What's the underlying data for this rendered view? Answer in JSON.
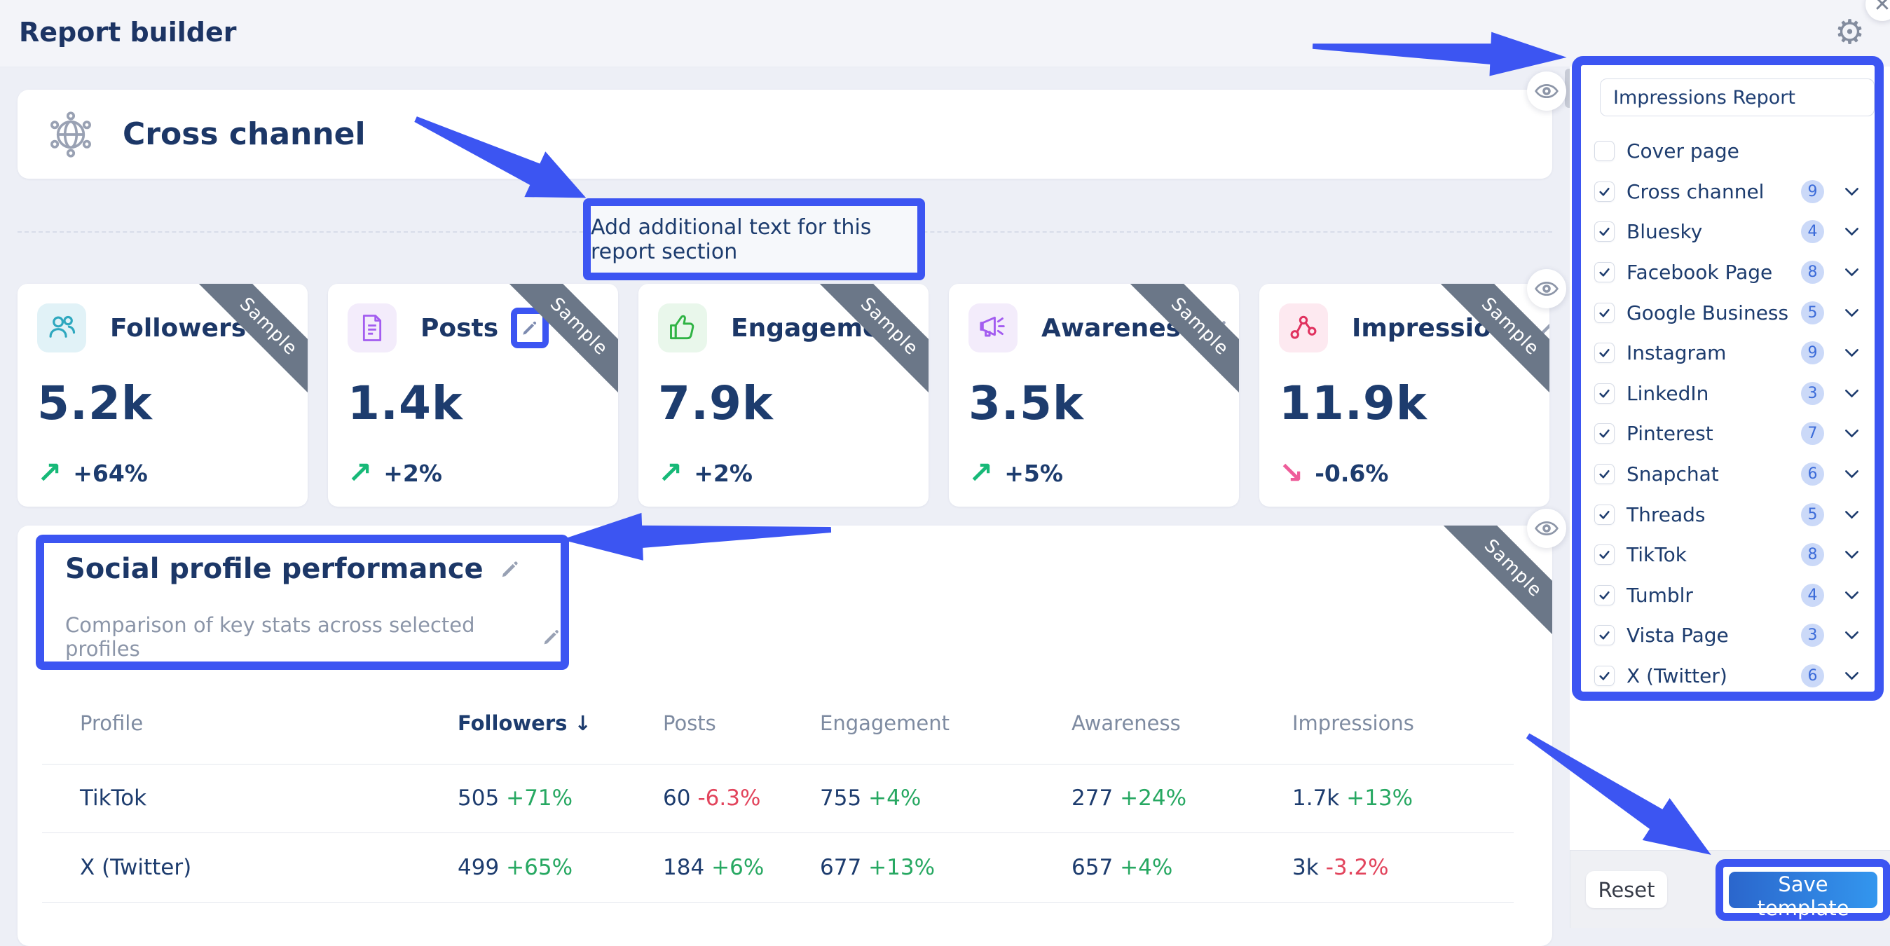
{
  "header": {
    "title": "Report builder"
  },
  "colors": {
    "highlight_blue": "#3c55f2",
    "navy": "#1d3c6e",
    "positive_green": "#27a862",
    "negative_red": "#e2445c",
    "ribbon_gray": "#6b7788"
  },
  "main": {
    "cross_channel": {
      "title": "Cross channel",
      "icon": "globe-network-icon"
    },
    "add_text_label": "Add additional text for this report section",
    "metric_cards": [
      {
        "label": "Followers",
        "value": "5.2k",
        "delta": "+64%",
        "trend": "up",
        "icon": "followers-people-icon",
        "ribbon": "Sample",
        "pencil": "plain"
      },
      {
        "label": "Posts",
        "value": "1.4k",
        "delta": "+2%",
        "trend": "up",
        "icon": "posts-document-icon",
        "ribbon": "Sample",
        "pencil": "highlighted"
      },
      {
        "label": "Engagement",
        "value": "7.9k",
        "delta": "+2%",
        "trend": "up",
        "icon": "engagement-thumb-icon",
        "ribbon": "Sample",
        "pencil": "none"
      },
      {
        "label": "Awareness",
        "value": "3.5k",
        "delta": "+5%",
        "trend": "up",
        "icon": "awareness-megaphone-icon",
        "ribbon": "Sample",
        "pencil": "plain"
      },
      {
        "label": "Impressions",
        "value": "11.9k",
        "delta": "-0.6%",
        "trend": "down",
        "icon": "impressions-share-icon",
        "ribbon": "Sample",
        "pencil": "plain"
      }
    ],
    "social_section": {
      "title": "Social profile performance",
      "subtitle": "Comparison of key stats across selected profiles",
      "ribbon": "Sample",
      "table": {
        "columns": [
          "Profile",
          "Followers",
          "Posts",
          "Engagement",
          "Awareness",
          "Impressions"
        ],
        "sorted_column": "Followers",
        "sort_arrow": "↓",
        "rows": [
          {
            "profile": "TikTok",
            "cells": [
              {
                "value": "505",
                "delta": "+71%",
                "dir": "up"
              },
              {
                "value": "60",
                "delta": "-6.3%",
                "dir": "down"
              },
              {
                "value": "755",
                "delta": "+4%",
                "dir": "up"
              },
              {
                "value": "277",
                "delta": "+24%",
                "dir": "up"
              },
              {
                "value": "1.7k",
                "delta": "+13%",
                "dir": "up"
              }
            ]
          },
          {
            "profile": "X (Twitter)",
            "cells": [
              {
                "value": "499",
                "delta": "+65%",
                "dir": "up"
              },
              {
                "value": "184",
                "delta": "+6%",
                "dir": "up"
              },
              {
                "value": "677",
                "delta": "+13%",
                "dir": "up"
              },
              {
                "value": "657",
                "delta": "+4%",
                "dir": "up"
              },
              {
                "value": "3k",
                "delta": "-3.2%",
                "dir": "down"
              }
            ]
          }
        ]
      }
    }
  },
  "sidebar": {
    "report_name": "Impressions Report",
    "items": [
      {
        "label": "Cover page",
        "checked": false,
        "count": null
      },
      {
        "label": "Cross channel",
        "checked": true,
        "count": "9"
      },
      {
        "label": "Bluesky",
        "checked": true,
        "count": "4"
      },
      {
        "label": "Facebook Page",
        "checked": true,
        "count": "8"
      },
      {
        "label": "Google Business",
        "checked": true,
        "count": "5"
      },
      {
        "label": "Instagram",
        "checked": true,
        "count": "9"
      },
      {
        "label": "LinkedIn",
        "checked": true,
        "count": "3"
      },
      {
        "label": "Pinterest",
        "checked": true,
        "count": "7"
      },
      {
        "label": "Snapchat",
        "checked": true,
        "count": "6"
      },
      {
        "label": "Threads",
        "checked": true,
        "count": "5"
      },
      {
        "label": "TikTok",
        "checked": true,
        "count": "8"
      },
      {
        "label": "Tumblr",
        "checked": true,
        "count": "4"
      },
      {
        "label": "Vista Page",
        "checked": true,
        "count": "3"
      },
      {
        "label": "X (Twitter)",
        "checked": true,
        "count": "6"
      }
    ],
    "footer": {
      "reset_label": "Reset",
      "save_label": "Save template"
    }
  }
}
